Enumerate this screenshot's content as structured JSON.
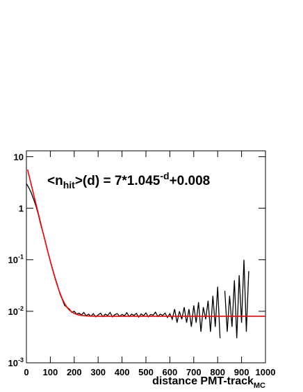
{
  "chart_data": {
    "type": "line",
    "annotation": [
      "<n",
      "hit",
      ">(d) = 7*1.045",
      "-d",
      "+0.008"
    ],
    "x_label": [
      "distance PMT-track",
      "MC"
    ],
    "log_y": true,
    "xlim": [
      0,
      1000
    ],
    "ylim": [
      0.001,
      13
    ],
    "xticks": [
      0,
      100,
      200,
      300,
      400,
      500,
      600,
      700,
      800,
      900,
      1000
    ],
    "yticks": [
      {
        "value": 0.001,
        "label": "10",
        "exponent": "-3"
      },
      {
        "value": 0.01,
        "label": "10",
        "exponent": "-2"
      },
      {
        "value": 0.1,
        "label": "10",
        "exponent": "-1"
      },
      1,
      10
    ],
    "series": [
      {
        "color": "#000000",
        "x": [
          0,
          10,
          20,
          30,
          40,
          50,
          60,
          70,
          80,
          90,
          100,
          110,
          120,
          130,
          140,
          150,
          160,
          170,
          180,
          190,
          200,
          210,
          220,
          230,
          240,
          250,
          260,
          270,
          280,
          290,
          300,
          310,
          320,
          330,
          340,
          350,
          360,
          370,
          380,
          390,
          400,
          410,
          420,
          430,
          440,
          450,
          460,
          470,
          480,
          490,
          500,
          510,
          520,
          530,
          540,
          550,
          560,
          570,
          580,
          590,
          600,
          610,
          620,
          630,
          640,
          650,
          660,
          670,
          680,
          690,
          700,
          710,
          720,
          730,
          740,
          750,
          760,
          770,
          780,
          790,
          800,
          810,
          820,
          830,
          840,
          850,
          860,
          870,
          880,
          890,
          900,
          910,
          920,
          930
        ],
        "values": [
          3.0,
          2.5,
          2.0,
          1.5,
          1.1,
          0.75,
          0.48,
          0.33,
          0.22,
          0.14,
          0.095,
          0.065,
          0.045,
          0.032,
          0.022,
          0.017,
          0.013,
          0.012,
          0.011,
          0.0095,
          0.01,
          0.0088,
          0.0092,
          0.0085,
          0.0095,
          0.0082,
          0.0088,
          0.008,
          0.009,
          0.0078,
          0.0085,
          0.0092,
          0.0079,
          0.0088,
          0.0083,
          0.0095,
          0.0078,
          0.0086,
          0.009,
          0.008,
          0.0087,
          0.0082,
          0.0094,
          0.0079,
          0.0088,
          0.0083,
          0.0091,
          0.0077,
          0.0089,
          0.0082,
          0.0093,
          0.0078,
          0.0087,
          0.0084,
          0.0096,
          0.0079,
          0.0088,
          0.0083,
          0.0092,
          0.0076,
          0.009,
          0.007,
          0.011,
          0.006,
          0.01,
          0.007,
          0.012,
          0.006,
          0.011,
          0.005,
          0.013,
          0.006,
          0.015,
          0.004,
          0.012,
          0.007,
          0.016,
          0.004,
          0.02,
          0.005,
          0.03,
          0.003,
          null,
          0.025,
          0.004,
          0.02,
          0.005,
          0.04,
          0.003,
          0.05,
          0.006,
          0.1,
          0.004,
          0.06
        ]
      },
      {
        "color": "#ff0000",
        "x": [
          5,
          10,
          20,
          30,
          40,
          50,
          60,
          70,
          80,
          90,
          100,
          110,
          120,
          130,
          140,
          150,
          160,
          170,
          180,
          200,
          220,
          250,
          300,
          400,
          500,
          600,
          700,
          800,
          900,
          1000
        ],
        "values": [
          5.63,
          4.51,
          2.91,
          1.877,
          1.212,
          0.783,
          0.507,
          0.329,
          0.215,
          0.141,
          0.094,
          0.063,
          0.0436,
          0.0309,
          0.0228,
          0.0175,
          0.0141,
          0.0119,
          0.0105,
          0.00905,
          0.00844,
          0.00812,
          0.008,
          0.008,
          0.008,
          0.008,
          0.008,
          0.008,
          0.008,
          0.008
        ]
      }
    ]
  }
}
